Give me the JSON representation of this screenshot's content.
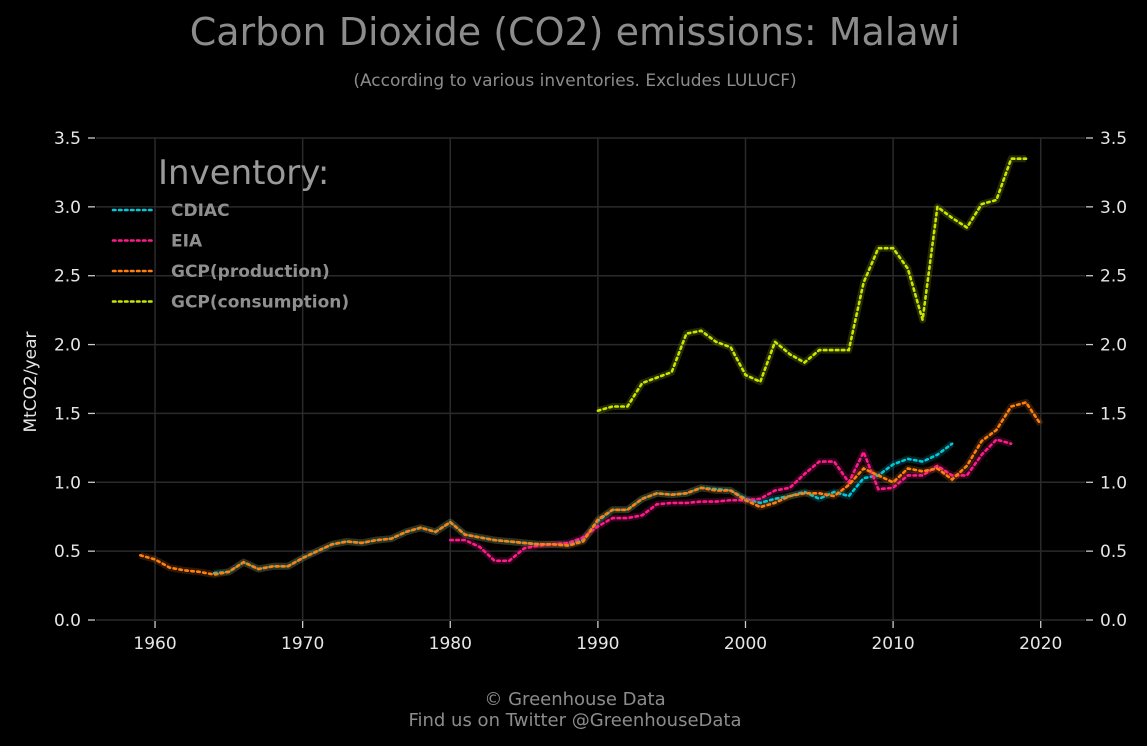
{
  "chart_data": {
    "type": "line",
    "title": "Carbon Dioxide (CO2) emissions: Malawi",
    "subtitle": "(According to various inventories. Excludes LULUCF)",
    "ylabel": "MtCO2/year",
    "xlabel": "",
    "xlim": [
      1956,
      2023
    ],
    "ylim": [
      0,
      3.5
    ],
    "x_ticks": [
      "1960",
      "1970",
      "1980",
      "1990",
      "2000",
      "2010",
      "2020"
    ],
    "y_ticks": [
      "0.0",
      "0.5",
      "1.0",
      "1.5",
      "2.0",
      "2.5",
      "3.0",
      "3.5"
    ],
    "grid": true,
    "legend_title": "Inventory:",
    "legend_position": "top-left",
    "series": [
      {
        "name": "CDIAC",
        "color": "#00c8d8",
        "x": [
          1964,
          1965,
          1966,
          1967,
          1968,
          1969,
          1970,
          1971,
          1972,
          1973,
          1974,
          1975,
          1976,
          1977,
          1978,
          1979,
          1980,
          1981,
          1982,
          1983,
          1984,
          1985,
          1986,
          1987,
          1988,
          1989,
          1990,
          1991,
          1992,
          1993,
          1994,
          1995,
          1996,
          1997,
          1998,
          1999,
          2000,
          2001,
          2002,
          2003,
          2004,
          2005,
          2006,
          2007,
          2008,
          2009,
          2010,
          2011,
          2012,
          2013,
          2014
        ],
        "y": [
          0.34,
          0.35,
          0.42,
          0.37,
          0.39,
          0.39,
          0.45,
          0.5,
          0.55,
          0.57,
          0.56,
          0.58,
          0.59,
          0.64,
          0.67,
          0.64,
          0.71,
          0.62,
          0.6,
          0.58,
          0.57,
          0.56,
          0.55,
          0.55,
          0.55,
          0.58,
          0.72,
          0.8,
          0.8,
          0.88,
          0.92,
          0.91,
          0.92,
          0.96,
          0.95,
          0.94,
          0.88,
          0.85,
          0.88,
          0.9,
          0.93,
          0.88,
          0.93,
          0.9,
          1.03,
          1.05,
          1.13,
          1.17,
          1.15,
          1.2,
          1.28
        ]
      },
      {
        "name": "EIA",
        "color": "#ff1a8c",
        "x": [
          1980,
          1981,
          1982,
          1983,
          1984,
          1985,
          1986,
          1987,
          1988,
          1989,
          1990,
          1991,
          1992,
          1993,
          1994,
          1995,
          1996,
          1997,
          1998,
          1999,
          2000,
          2001,
          2002,
          2003,
          2004,
          2005,
          2006,
          2007,
          2008,
          2009,
          2010,
          2011,
          2012,
          2013,
          2014,
          2015,
          2016,
          2017,
          2018
        ],
        "y": [
          0.58,
          0.58,
          0.53,
          0.43,
          0.43,
          0.52,
          0.54,
          0.55,
          0.56,
          0.6,
          0.68,
          0.74,
          0.74,
          0.76,
          0.84,
          0.85,
          0.85,
          0.86,
          0.86,
          0.87,
          0.87,
          0.88,
          0.94,
          0.96,
          1.06,
          1.15,
          1.15,
          1.0,
          1.22,
          0.95,
          0.96,
          1.05,
          1.05,
          1.12,
          1.05,
          1.05,
          1.2,
          1.31,
          1.28
        ]
      },
      {
        "name": "GCP(production)",
        "color": "#ff7f0e",
        "x": [
          1959,
          1960,
          1961,
          1962,
          1963,
          1964,
          1965,
          1966,
          1967,
          1968,
          1969,
          1970,
          1971,
          1972,
          1973,
          1974,
          1975,
          1976,
          1977,
          1978,
          1979,
          1980,
          1981,
          1982,
          1983,
          1984,
          1985,
          1986,
          1987,
          1988,
          1989,
          1990,
          1991,
          1992,
          1993,
          1994,
          1995,
          1996,
          1997,
          1998,
          1999,
          2000,
          2001,
          2002,
          2003,
          2004,
          2005,
          2006,
          2007,
          2008,
          2009,
          2010,
          2011,
          2012,
          2013,
          2014,
          2015,
          2016,
          2017,
          2018,
          2019,
          2020
        ],
        "y": [
          0.47,
          0.44,
          0.38,
          0.36,
          0.35,
          0.33,
          0.35,
          0.42,
          0.37,
          0.39,
          0.39,
          0.45,
          0.5,
          0.55,
          0.57,
          0.56,
          0.58,
          0.59,
          0.64,
          0.67,
          0.64,
          0.71,
          0.62,
          0.6,
          0.58,
          0.57,
          0.56,
          0.55,
          0.55,
          0.54,
          0.57,
          0.73,
          0.8,
          0.8,
          0.88,
          0.92,
          0.91,
          0.92,
          0.96,
          0.94,
          0.94,
          0.87,
          0.82,
          0.85,
          0.9,
          0.92,
          0.92,
          0.9,
          0.98,
          1.1,
          1.05,
          1.0,
          1.1,
          1.08,
          1.1,
          1.02,
          1.12,
          1.3,
          1.38,
          1.55,
          1.58,
          1.42
        ]
      },
      {
        "name": "GCP(consumption)",
        "color": "#c8e600",
        "x": [
          1990,
          1991,
          1992,
          1993,
          1994,
          1995,
          1996,
          1997,
          1998,
          1999,
          2000,
          2001,
          2002,
          2003,
          2004,
          2005,
          2006,
          2007,
          2008,
          2009,
          2010,
          2011,
          2012,
          2013,
          2014,
          2015,
          2016,
          2017,
          2018,
          2019
        ],
        "y": [
          1.52,
          1.55,
          1.55,
          1.72,
          1.76,
          1.8,
          2.08,
          2.1,
          2.02,
          1.98,
          1.78,
          1.73,
          2.02,
          1.93,
          1.87,
          1.96,
          1.96,
          1.96,
          2.45,
          2.7,
          2.7,
          2.55,
          2.18,
          3.0,
          2.92,
          2.85,
          3.02,
          3.05,
          3.35,
          3.35
        ]
      }
    ]
  },
  "footer": {
    "line1": "© Greenhouse Data",
    "line2": "Find us on Twitter @GreenhouseData"
  }
}
